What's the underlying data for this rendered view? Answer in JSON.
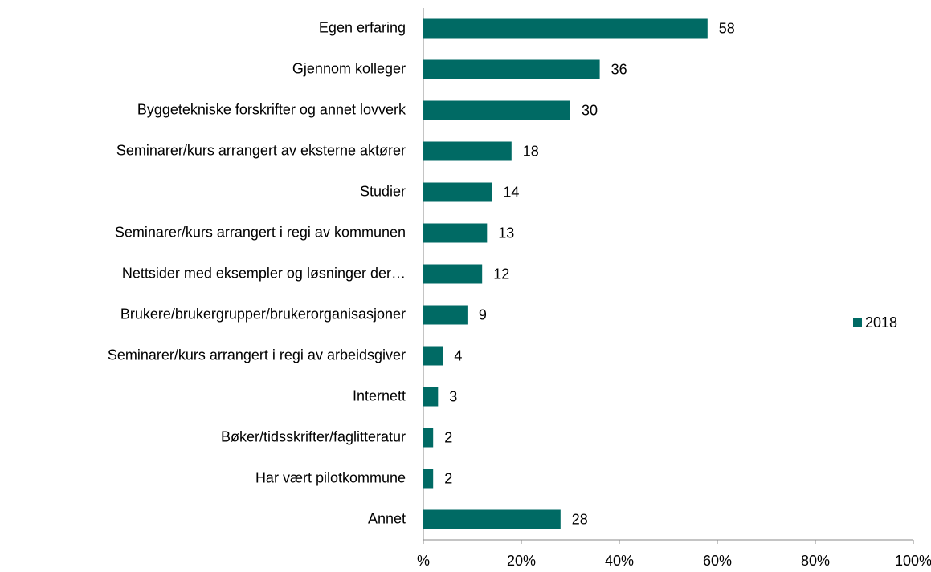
{
  "chart_data": {
    "type": "bar",
    "orientation": "horizontal",
    "categories": [
      "Egen erfaring",
      "Gjennom kolleger",
      "Byggetekniske forskrifter og annet lovverk",
      "Seminarer/kurs arrangert av eksterne aktører",
      "Studier",
      "Seminarer/kurs arrangert i regi av kommunen",
      "Nettsider med eksempler og løsninger der…",
      "Brukere/brukergrupper/brukerorganisasjoner",
      "Seminarer/kurs arrangert i regi av arbeidsgiver",
      "Internett",
      "Bøker/tidsskrifter/faglitteratur",
      "Har vært pilotkommune",
      "Annet"
    ],
    "series": [
      {
        "name": "2018",
        "color": "#006a64",
        "values": [
          58,
          36,
          30,
          18,
          14,
          13,
          12,
          9,
          4,
          3,
          2,
          2,
          28
        ]
      }
    ],
    "xlim": [
      0,
      100
    ],
    "xticks": [
      {
        "value": 0,
        "label": "%"
      },
      {
        "value": 20,
        "label": "20%"
      },
      {
        "value": 40,
        "label": "40%"
      },
      {
        "value": 60,
        "label": "60%"
      },
      {
        "value": 80,
        "label": "80%"
      },
      {
        "value": 100,
        "label": "100%"
      }
    ],
    "grid": false,
    "legend": "right"
  }
}
